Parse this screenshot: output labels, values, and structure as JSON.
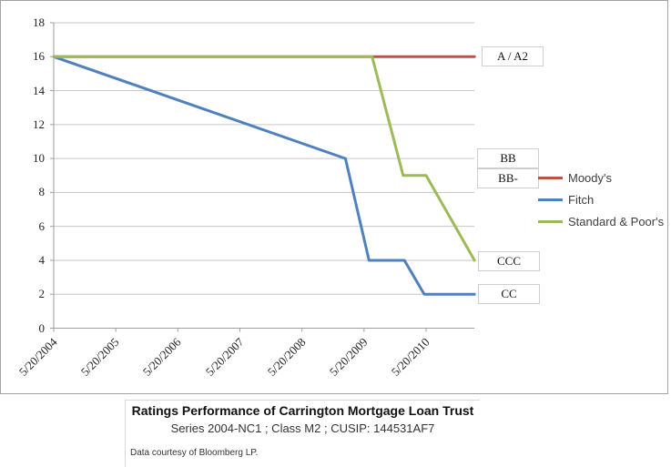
{
  "title_block": {
    "title": "Ratings Performance of Carrington Mortgage Loan Trust",
    "subtitle": "Series 2004-NC1 ; Class M2 ; CUSIP: 144531AF7",
    "note": "Data courtesy of Bloomberg LP."
  },
  "chart_data": {
    "type": "line",
    "title": "",
    "xlabel": "",
    "ylabel": "",
    "grid": "horizontal",
    "legend_position": "right",
    "x_axis": {
      "tick_labels": [
        "5/20/2004",
        "5/20/2005",
        "5/20/2006",
        "5/20/2007",
        "5/20/2008",
        "5/20/2009",
        "5/20/2010"
      ],
      "ticks_years_from_start": [
        0,
        1,
        2,
        3,
        4,
        5,
        6
      ],
      "x_max_years": 6.78
    },
    "y_axis": {
      "min": 0,
      "max": 18,
      "step": 2,
      "tick_labels": [
        "0",
        "2",
        "4",
        "6",
        "8",
        "10",
        "12",
        "14",
        "16",
        "18"
      ]
    },
    "series": [
      {
        "name": "Moody's",
        "color": "#C0504D",
        "points_years_value": [
          [
            0,
            16
          ],
          [
            6.78,
            16
          ]
        ]
      },
      {
        "name": "Fitch",
        "color": "#4F81BD",
        "points_years_value": [
          [
            0,
            16
          ],
          [
            4.7,
            10
          ],
          [
            5.08,
            4
          ],
          [
            5.65,
            4
          ],
          [
            5.97,
            2
          ],
          [
            6.78,
            2
          ]
        ]
      },
      {
        "name": "Standard & Poor's",
        "color": "#9BBB59",
        "points_years_value": [
          [
            0,
            16
          ],
          [
            5.13,
            16
          ],
          [
            5.63,
            9
          ],
          [
            6.0,
            9
          ],
          [
            6.78,
            4
          ]
        ]
      }
    ],
    "annotations": [
      {
        "label": "A / A2",
        "value": 16
      },
      {
        "label": "BB",
        "value": 10
      },
      {
        "label": "BB-",
        "value": 9
      },
      {
        "label": "CCC",
        "value": 4
      },
      {
        "label": "CC",
        "value": 2
      }
    ]
  }
}
